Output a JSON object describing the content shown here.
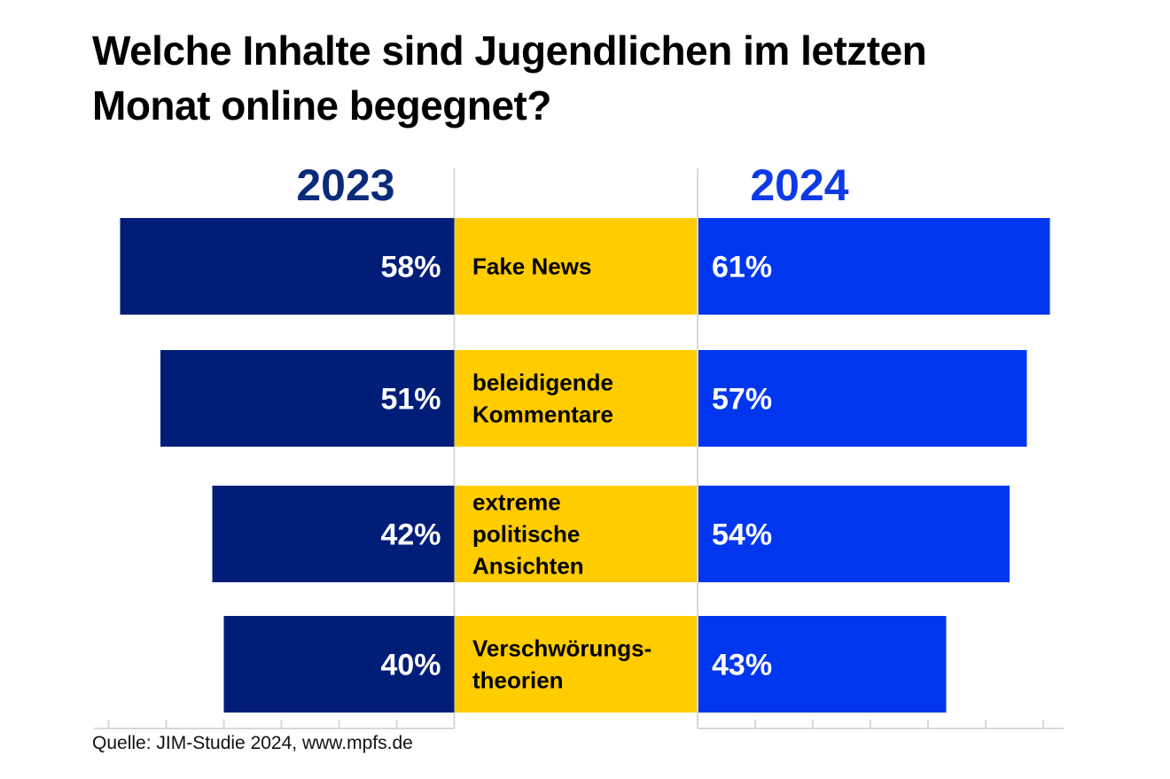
{
  "title": "Welche Inhalte sind Jugendlichen im letzten Monat online begegnet?",
  "source": "Quelle: JIM-Studie 2024, www.mpfs.de",
  "colors": {
    "series_2023": "#001e78",
    "series_2024": "#0037ee",
    "category_band": "#ffcc00",
    "axis": "#d9d9d9",
    "year_2023_label": "#0a2a7a",
    "year_2024_label": "#0d3ae6"
  },
  "chart_data": {
    "type": "bar",
    "orientation": "horizontal-butterfly",
    "title": "Welche Inhalte sind Jugendlichen im letzten Monat online begegnet?",
    "categories": [
      [
        "Fake News"
      ],
      [
        "beleidigende",
        "Kommentare"
      ],
      [
        "extreme",
        "politische",
        "Ansichten"
      ],
      [
        "Verschwörungs-",
        "theorien"
      ]
    ],
    "category_names": [
      "Fake News",
      "beleidigende Kommentare",
      "extreme politische Ansichten",
      "Verschwörungstheorien"
    ],
    "series": [
      {
        "name": "2023",
        "side": "left",
        "values": [
          58,
          51,
          42,
          40
        ],
        "labels": [
          "58%",
          "51%",
          "42%",
          "40%"
        ]
      },
      {
        "name": "2024",
        "side": "right",
        "values": [
          61,
          57,
          54,
          43
        ],
        "labels": [
          "61%",
          "57%",
          "54%",
          "43%"
        ]
      }
    ],
    "xlim": [
      0,
      60
    ],
    "tick_step": 10,
    "unit": "%",
    "grid": false,
    "legend": "year headers above each side"
  }
}
